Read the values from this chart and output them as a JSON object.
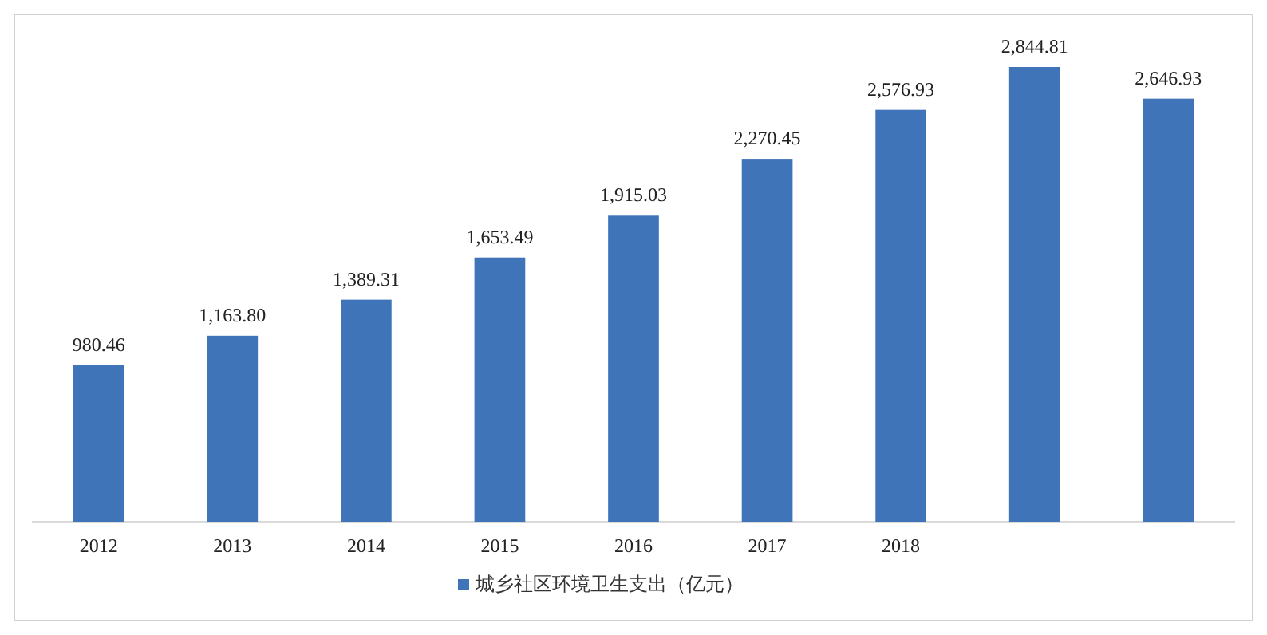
{
  "chart_data": {
    "type": "bar",
    "categories": [
      "2012",
      "2013",
      "2014",
      "2015",
      "2016",
      "2017",
      "2018",
      null,
      null
    ],
    "series": [
      {
        "name": "城乡社区环境卫生支出（亿元）",
        "color": "#3f74b9",
        "values": [
          980.46,
          1163.8,
          1389.31,
          1653.49,
          1915.03,
          2270.45,
          2576.93,
          2844.81,
          2646.93
        ],
        "value_labels": [
          "980.46",
          "1,163.80",
          "1,389.31",
          "1,653.49",
          "1,915.03",
          "2,270.45",
          "2,576.93",
          "2,844.81",
          "2,646.93"
        ]
      }
    ],
    "legend": "bottom",
    "grid": false
  }
}
